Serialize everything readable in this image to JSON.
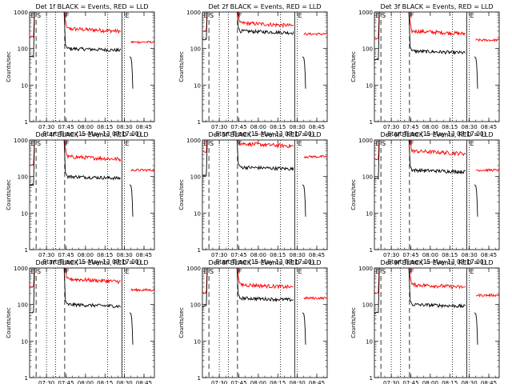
{
  "chart_data": {
    "type": "line",
    "common": {
      "xlabel": "Start Time (15-May-13 07:17:00)",
      "ylabel": "Counts/sec",
      "y_scale": "log",
      "ylim": [
        1,
        1000
      ],
      "y_ticks": [
        "1",
        "10",
        "100",
        "1000"
      ],
      "x_ticks": [
        "07:30",
        "07:45",
        "08:00",
        "08:15",
        "08:30",
        "08:45"
      ],
      "xlim_minutes_after_start": [
        0,
        96
      ],
      "series_colors": {
        "Events": "#000000",
        "LLD": "#ff0000"
      },
      "segment_labels": [
        "E",
        "S",
        "F",
        "E"
      ],
      "marker_lines": [
        {
          "t": 5,
          "style": "dashed"
        },
        {
          "t": 13,
          "style": "dotted"
        },
        {
          "t": 20,
          "style": "dotted"
        },
        {
          "t": 27,
          "style": "dashed"
        },
        {
          "t": 60,
          "style": "dotted"
        },
        {
          "t": 71,
          "style": "solid"
        },
        {
          "t": 73,
          "style": "dotted"
        }
      ]
    },
    "panels": [
      {
        "title": "Det 1f BLACK = Events, RED = LLD",
        "events_level": 100,
        "lld_level": 350,
        "gap_start": 71,
        "tail_level": 150,
        "lld_max_cap": 1000
      },
      {
        "title": "Det 2f BLACK = Events, RED = LLD",
        "events_level": 300,
        "lld_level": 500,
        "gap_start": 71,
        "tail_level": 250,
        "lld_max_cap": 1000
      },
      {
        "title": "Det 3f BLACK = Events, RED = LLD",
        "events_level": 85,
        "lld_level": 300,
        "gap_start": 71,
        "tail_level": 170,
        "lld_max_cap": 1000
      },
      {
        "title": "Det 4f BLACK = Events, RED = LLD",
        "events_level": 100,
        "lld_level": 350,
        "gap_start": 71,
        "tail_level": 150,
        "lld_max_cap": 1000
      },
      {
        "title": "Det 5f BLACK = Events, RED = LLD",
        "events_level": 180,
        "lld_level": 800,
        "gap_start": 71,
        "tail_level": 350,
        "lld_max_cap": 1000
      },
      {
        "title": "Det 6f BLACK = Events, RED = LLD",
        "events_level": 150,
        "lld_level": 500,
        "gap_start": 71,
        "tail_level": 150,
        "lld_max_cap": 1000
      },
      {
        "title": "Det 7f BLACK = Events, RED = LLD",
        "events_level": 100,
        "lld_level": 500,
        "gap_start": 71,
        "tail_level": 250,
        "lld_max_cap": 1000
      },
      {
        "title": "Det 8f BLACK = Events, RED = LLD",
        "events_level": 150,
        "lld_level": 350,
        "gap_start": 71,
        "tail_level": 150,
        "lld_max_cap": 1000
      },
      {
        "title": "Det 9f BLACK = Events, RED = LLD",
        "events_level": 100,
        "lld_level": 350,
        "gap_start": 71,
        "tail_level": 180,
        "lld_max_cap": 1000
      }
    ]
  }
}
